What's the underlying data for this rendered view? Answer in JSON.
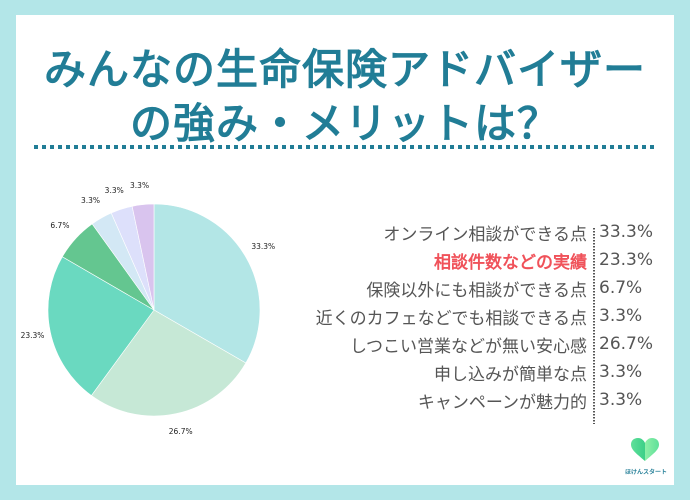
{
  "title": {
    "line1": "みんなの生命保険アドバイザー",
    "line2": "の強み・メリットは？"
  },
  "colors": {
    "background": "#b3e6e8",
    "title": "#217d96",
    "highlight": "#f0525a",
    "text": "#555555"
  },
  "legend": {
    "items": [
      {
        "label": "オンライン相談ができる点",
        "value": "33.3%",
        "highlight": false
      },
      {
        "label": "相談件数などの実績",
        "value": "23.3%",
        "highlight": true
      },
      {
        "label": "保険以外にも相談ができる点",
        "value": "6.7%",
        "highlight": false
      },
      {
        "label": "近くのカフェなどでも相談できる点",
        "value": "3.3%",
        "highlight": false
      },
      {
        "label": "しつこい営業などが無い安心感",
        "value": "26.7%",
        "highlight": false
      },
      {
        "label": "申し込みが簡単な点",
        "value": "3.3%",
        "highlight": false
      },
      {
        "label": "キャンペーンが魅力的",
        "value": "3.3%",
        "highlight": false
      }
    ]
  },
  "pie_labels": [
    "33.3%",
    "26.7%",
    "23.3%",
    "6.7%",
    "3.3%",
    "3.3%",
    "3.3%"
  ],
  "logo": {
    "icon": "heart-icon",
    "text": "ほけんスタート"
  },
  "chart_data": {
    "type": "pie",
    "title": "みんなの生命保険アドバイザーの強み・メリットは？",
    "categories": [
      "オンライン相談ができる点",
      "しつこい営業などが無い安心感",
      "相談件数などの実績",
      "保険以外にも相談ができる点",
      "近くのカフェなどでも相談できる点",
      "申し込みが簡単な点",
      "キャンペーンが魅力的"
    ],
    "values": [
      33.3,
      26.7,
      23.3,
      6.7,
      3.3,
      3.3,
      3.3
    ],
    "colors": [
      "#b3e6e6",
      "#c6e8d6",
      "#6ad9c0",
      "#64c690",
      "#d3e8f5",
      "#dde0fb",
      "#d9c4ee"
    ],
    "start_angle": "12 o'clock",
    "direction": "clockwise",
    "legend_position": "right"
  }
}
